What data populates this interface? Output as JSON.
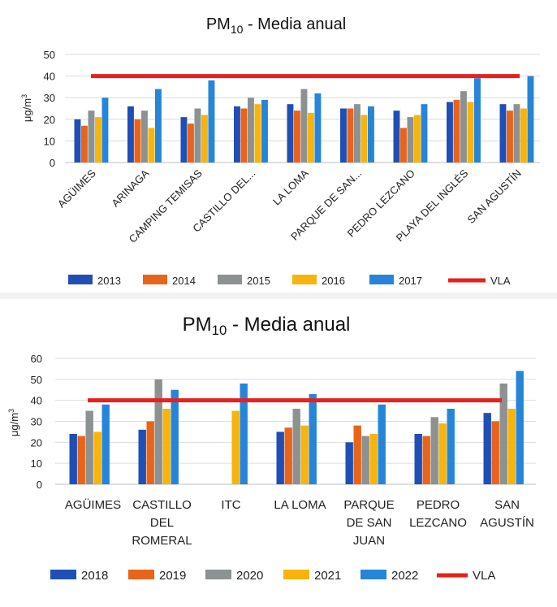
{
  "chart_data": [
    {
      "type": "bar",
      "title": "PM10 - Media anual",
      "title_main": "PM",
      "title_sub": "10",
      "title_rest": " - Media anual",
      "ylabel": "μg/m3",
      "ylabel_main": "μg/m",
      "ylabel_sup": "3",
      "ylim": [
        0,
        50
      ],
      "yticks": [
        "0",
        "10",
        "20",
        "30",
        "40",
        "50"
      ],
      "grid": true,
      "legend_position": "bottom",
      "categories": [
        "AGÜIMES",
        "ARINAGA",
        "CAMPING TEMISAS",
        "CASTILLO DEL...",
        "LA LOMA",
        "PARQUE DE SAN...",
        "PEDRO LEZCANO",
        "PLAYA DEL INGLÉS",
        "SAN AGUSTÍN"
      ],
      "series": [
        {
          "name": "2013",
          "color": "#1f4fb5",
          "values": [
            20,
            26,
            21,
            26,
            27,
            25,
            24,
            28,
            27
          ]
        },
        {
          "name": "2014",
          "color": "#e8641b",
          "values": [
            17,
            20,
            18,
            25,
            24,
            25,
            16,
            29,
            24
          ]
        },
        {
          "name": "2015",
          "color": "#8c9191",
          "values": [
            24,
            24,
            25,
            30,
            34,
            27,
            21,
            33,
            27
          ]
        },
        {
          "name": "2016",
          "color": "#f6b40c",
          "values": [
            21,
            16,
            22,
            27,
            23,
            22,
            22,
            28,
            25
          ]
        },
        {
          "name": "2017",
          "color": "#2685d8",
          "values": [
            30,
            34,
            38,
            29,
            32,
            26,
            27,
            39,
            40
          ]
        }
      ],
      "reference_line": {
        "name": "VLA",
        "value": 40,
        "color": "#e8201e"
      }
    },
    {
      "type": "bar",
      "title": "PM10 - Media anual",
      "title_main": "PM",
      "title_sub": "10",
      "title_rest": " - Media anual",
      "ylabel": "μg/m3",
      "ylabel_main": "μg/m",
      "ylabel_sup": "3",
      "ylim": [
        0,
        60
      ],
      "yticks": [
        "0",
        "10",
        "20",
        "30",
        "40",
        "50",
        "60"
      ],
      "grid": true,
      "legend_position": "bottom",
      "categories": [
        [
          "AGÜIMES"
        ],
        [
          "CASTILLO",
          "DEL",
          "ROMERAL"
        ],
        [
          "ITC"
        ],
        [
          "LA LOMA"
        ],
        [
          "PARQUE",
          "DE SAN",
          "JUAN"
        ],
        [
          "PEDRO",
          "LEZCANO"
        ],
        [
          "SAN",
          "AGUSTÍN"
        ]
      ],
      "series": [
        {
          "name": "2018",
          "color": "#1f4fb5",
          "values": [
            24,
            26,
            null,
            25,
            20,
            24,
            34
          ]
        },
        {
          "name": "2019",
          "color": "#e8641b",
          "values": [
            23,
            30,
            null,
            27,
            28,
            23,
            30
          ]
        },
        {
          "name": "2020",
          "color": "#8c9191",
          "values": [
            35,
            50,
            null,
            36,
            23,
            32,
            48
          ]
        },
        {
          "name": "2021",
          "color": "#f6b40c",
          "values": [
            25,
            36,
            35,
            28,
            24,
            29,
            36
          ]
        },
        {
          "name": "2022",
          "color": "#2685d8",
          "values": [
            38,
            45,
            48,
            43,
            38,
            36,
            54
          ]
        }
      ],
      "reference_line": {
        "name": "VLA",
        "value": 40,
        "color": "#e8201e"
      }
    }
  ]
}
